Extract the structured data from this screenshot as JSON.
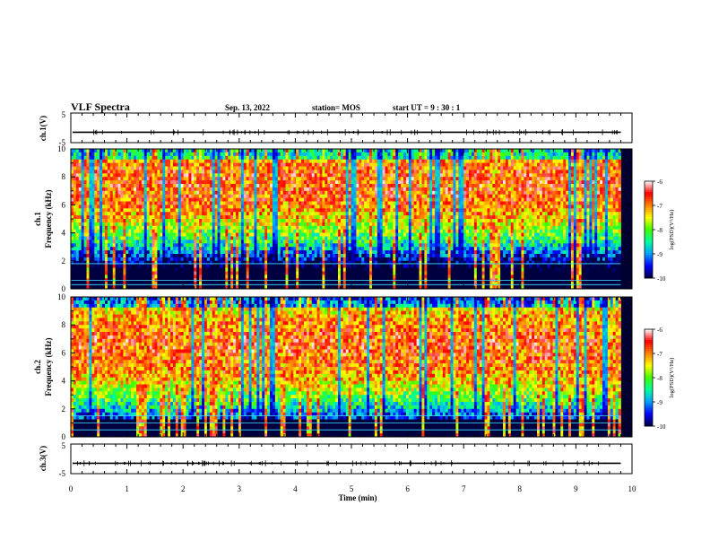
{
  "header": {
    "title": "VLF Spectra",
    "date": "Sep. 13, 2022",
    "station": "station= MOS",
    "start_time": "start  UT  =   9  : 30 : 1"
  },
  "panels": {
    "ch1_voltage": {
      "ylabel": "ch.1(V)"
    },
    "ch1_spectrogram": {
      "ylabel_line1": "ch.1",
      "ylabel_line2": "Frequency (kHz)"
    },
    "ch2_spectrogram": {
      "ylabel_line1": "ch.2",
      "ylabel_line2": "Frequency (kHz)"
    },
    "ch3_voltage": {
      "ylabel": "ch.3(V)"
    }
  },
  "colorbar": {
    "label": "log(PSD)(V²/Hz)",
    "ticks": [
      "-6",
      "-7",
      "-8",
      "-9",
      "-10"
    ]
  },
  "colors": {
    "colormap": [
      "#000040",
      "#0000ff",
      "#00a0ff",
      "#00ffa0",
      "#40ff00",
      "#ffff00",
      "#ff8000",
      "#ff0000",
      "#ffffff"
    ]
  },
  "chart_data": [
    {
      "type": "line",
      "name": "ch.1 voltage",
      "ylabel": "ch.1(V)",
      "ylim": [
        -5,
        5
      ],
      "yticks": [
        "5",
        "-5"
      ],
      "xlim": [
        0,
        10
      ],
      "level": -1.5
    },
    {
      "type": "heatmap",
      "name": "ch.1 spectrogram",
      "xlabel": "",
      "ylabel": "Frequency (kHz)",
      "xlim": [
        0,
        10
      ],
      "ylim": [
        0,
        10
      ],
      "yticks": [
        "0",
        "2",
        "4",
        "6",
        "8",
        "10"
      ],
      "data_end_min": 9.8,
      "color_range": [
        -10,
        -6
      ],
      "peak_band_khz": [
        6,
        9
      ],
      "lines_khz": [
        0.3,
        0.6,
        1.8
      ]
    },
    {
      "type": "heatmap",
      "name": "ch.2 spectrogram",
      "ylabel": "Frequency (kHz)",
      "xlim": [
        0,
        10
      ],
      "ylim": [
        0,
        10
      ],
      "yticks": [
        "0",
        "2",
        "4",
        "6",
        "8",
        "10"
      ],
      "data_end_min": 9.8,
      "color_range": [
        -10,
        -6
      ],
      "peak_band_khz": [
        5,
        8
      ],
      "lines_khz": [
        0.5,
        1.0,
        1.5
      ]
    },
    {
      "type": "line",
      "name": "ch.3 voltage",
      "ylabel": "ch.3(V)",
      "ylim": [
        -5,
        5
      ],
      "yticks": [
        "5",
        "-5"
      ],
      "xlim": [
        0,
        10
      ],
      "level": -1.5,
      "xlabel": "Time (min)",
      "xticks": [
        "0",
        "1",
        "2",
        "3",
        "4",
        "5",
        "6",
        "7",
        "8",
        "9",
        "10"
      ]
    }
  ]
}
